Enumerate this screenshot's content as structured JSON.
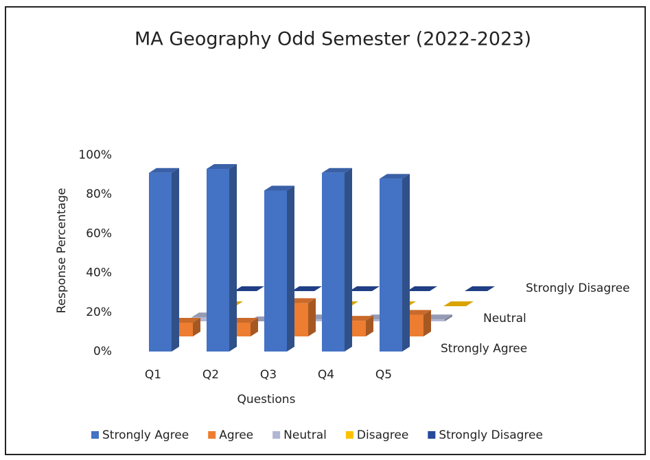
{
  "chart_data": {
    "type": "bar3d",
    "title": "MA Geography Odd Semester (2022-2023)",
    "x_label": "Questions",
    "y_label": "Response Percentage",
    "categories": [
      "Q1",
      "Q2",
      "Q3",
      "Q4",
      "Q5"
    ],
    "series": [
      {
        "name": "Strongly Agree",
        "color": "#4472c4",
        "values": [
          91,
          93,
          82,
          91,
          88
        ]
      },
      {
        "name": "Agree",
        "color": "#ed7d31",
        "values": [
          7,
          7,
          17,
          8,
          11
        ]
      },
      {
        "name": "Neutral",
        "color": "#b0b6d4",
        "values": [
          2,
          0,
          1,
          1,
          1
        ]
      },
      {
        "name": "Disagree",
        "color": "#ffc000",
        "values": [
          0,
          0,
          0,
          0,
          0
        ]
      },
      {
        "name": "Strongly Disagree",
        "color": "#264a9c",
        "values": [
          0,
          0,
          0,
          0,
          0
        ]
      }
    ],
    "ylim": [
      0,
      100
    ],
    "yticks": [
      {
        "value": 0,
        "label": "0%"
      },
      {
        "value": 20,
        "label": "20%"
      },
      {
        "value": 40,
        "label": "40%"
      },
      {
        "value": 60,
        "label": "60%"
      },
      {
        "value": 80,
        "label": "80%"
      },
      {
        "value": 100,
        "label": "100%"
      }
    ],
    "legend": "bottom"
  }
}
